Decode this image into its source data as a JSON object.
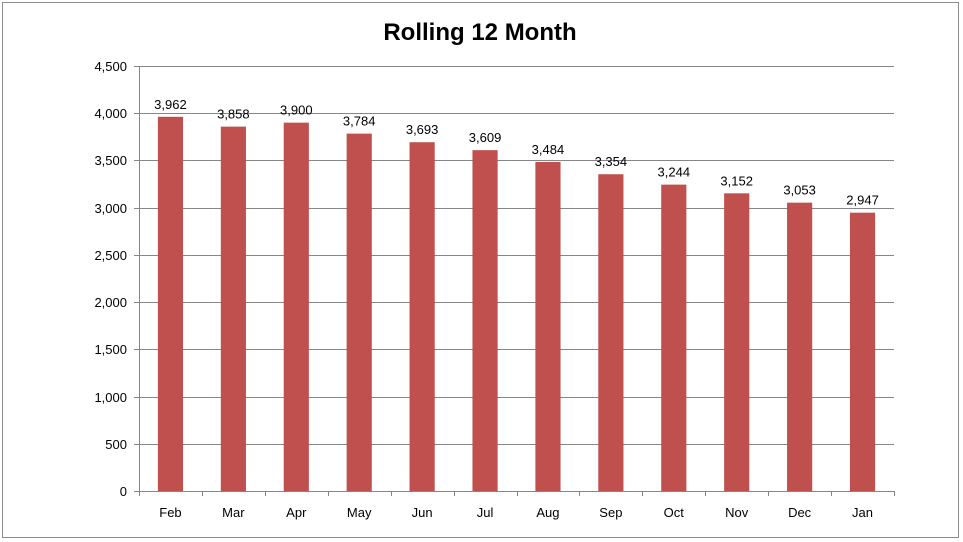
{
  "chart_data": {
    "type": "bar",
    "title": "Rolling 12 Month",
    "categories": [
      "Feb",
      "Mar",
      "Apr",
      "May",
      "Jun",
      "Jul",
      "Aug",
      "Sep",
      "Oct",
      "Nov",
      "Dec",
      "Jan"
    ],
    "values": [
      3962,
      3858,
      3900,
      3784,
      3693,
      3609,
      3484,
      3354,
      3244,
      3152,
      3053,
      2947
    ],
    "data_labels": [
      "3,962",
      "3,858",
      "3,900",
      "3,784",
      "3,693",
      "3,609",
      "3,484",
      "3,354",
      "3,244",
      "3,152",
      "3,053",
      "2,947"
    ],
    "ylim": [
      0,
      4500
    ],
    "yticks": [
      0,
      500,
      1000,
      1500,
      2000,
      2500,
      3000,
      3500,
      4000,
      4500
    ],
    "ytick_labels": [
      "0",
      "500",
      "1,000",
      "1,500",
      "2,000",
      "2,500",
      "3,000",
      "3,500",
      "4,000",
      "4,500"
    ],
    "grid": true,
    "legend": "none",
    "bar_color": "#c0504d",
    "gridline_color": "#868686"
  }
}
